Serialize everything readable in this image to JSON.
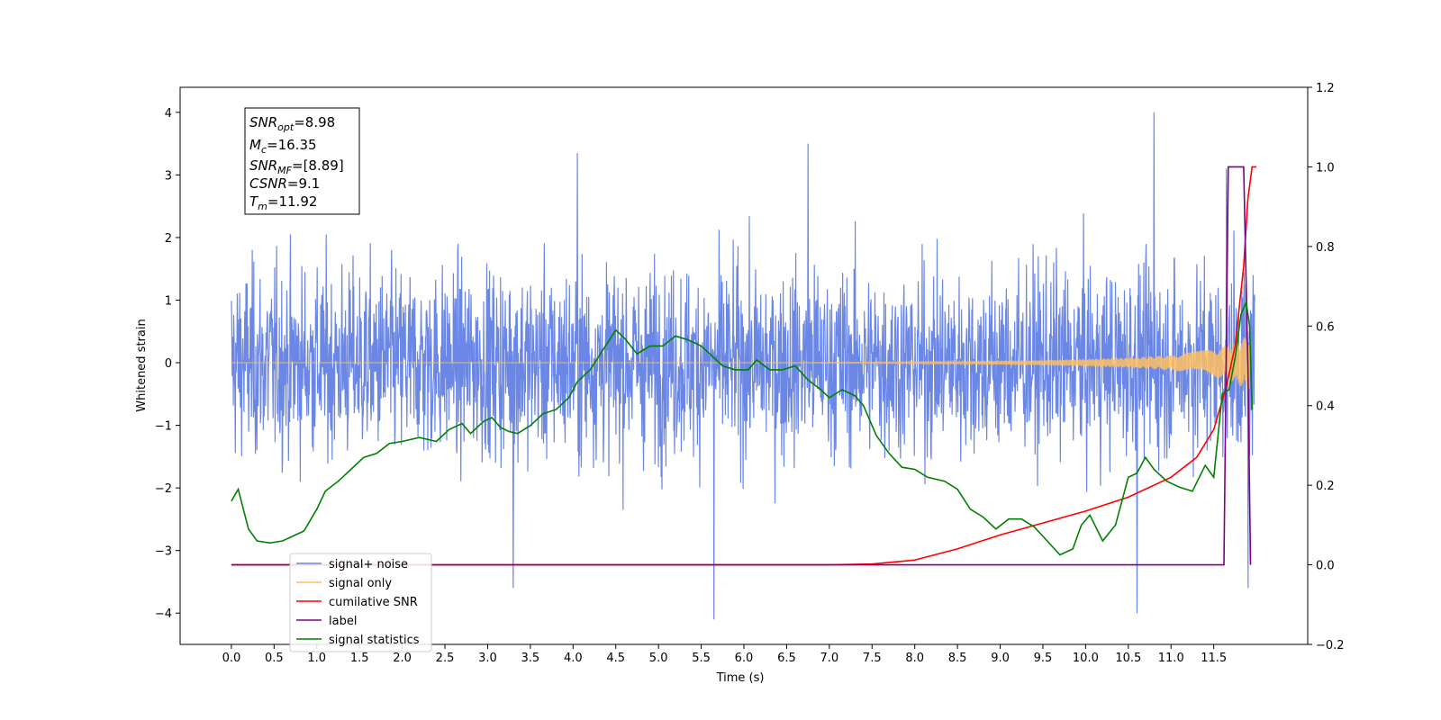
{
  "chart_data": {
    "type": "line",
    "xlabel": "Time (s)",
    "ylabel": "Whitened strain",
    "xlim": [
      -0.6,
      12.6
    ],
    "ylim": [
      -4.5,
      4.4
    ],
    "y2lim": [
      -0.2,
      1.2
    ],
    "xticks": [
      "0.0",
      "0.5",
      "1.0",
      "1.5",
      "2.0",
      "2.5",
      "3.0",
      "3.5",
      "4.0",
      "4.5",
      "5.0",
      "5.5",
      "6.0",
      "6.5",
      "7.0",
      "7.5",
      "8.0",
      "8.5",
      "9.0",
      "9.5",
      "10.0",
      "10.5",
      "11.0",
      "11.5"
    ],
    "yticks": [
      "4",
      "3",
      "2",
      "1",
      "0",
      "−1",
      "−2",
      "−3",
      "−4"
    ],
    "y2ticks": [
      "1.2",
      "1.0",
      "0.8",
      "0.6",
      "0.4",
      "0.2",
      "0.0",
      "−0.2"
    ],
    "grid": false,
    "legend_position": "lower-left",
    "legend": [
      {
        "label": "signal+ noise",
        "color": "#6b87e6"
      },
      {
        "label": "signal only",
        "color": "#ffbf60"
      },
      {
        "label": "cumilative SNR",
        "color": "#ff0000"
      },
      {
        "label": "label",
        "color": "#800080"
      },
      {
        "label": "signal statistics",
        "color": "#008000"
      }
    ],
    "annotation": {
      "snr_opt": "=8.98",
      "mc": "=16.35",
      "snr_mf": "=[8.89]",
      "csnr": "=9.1",
      "tm": "=11.92"
    },
    "series": [
      {
        "name": "signal+ noise",
        "axis": "left",
        "color": "#6b87e6",
        "description": "noise band, extremes",
        "x_range": [
          0.0,
          11.98
        ],
        "typical_envelope": [
          -2.5,
          2.5
        ],
        "spikes": [
          [
            3.3,
            -3.6
          ],
          [
            4.05,
            3.35
          ],
          [
            5.65,
            -4.1
          ],
          [
            6.75,
            3.5
          ],
          [
            10.6,
            -4.0
          ],
          [
            10.8,
            4.0
          ],
          [
            11.65,
            3.1
          ],
          [
            11.9,
            -3.6
          ]
        ]
      },
      {
        "name": "signal only",
        "axis": "left",
        "color": "#ffbf60",
        "envelope_x": [
          0,
          6,
          7.5,
          8.5,
          9.5,
          10.5,
          11.0,
          11.5,
          11.7,
          11.85,
          11.92
        ],
        "envelope_y": [
          0.0,
          0.0,
          0.01,
          0.02,
          0.04,
          0.08,
          0.12,
          0.22,
          0.3,
          0.4,
          0.45
        ]
      },
      {
        "name": "cumilative SNR",
        "axis": "right",
        "color": "#ff0000",
        "x": [
          0,
          7.0,
          7.5,
          8.0,
          8.5,
          9.0,
          9.5,
          10.0,
          10.5,
          11.0,
          11.3,
          11.5,
          11.65,
          11.75,
          11.85,
          11.9,
          11.95,
          12.0
        ],
        "values": [
          0.0,
          0.0,
          0.002,
          0.012,
          0.04,
          0.075,
          0.105,
          0.135,
          0.17,
          0.22,
          0.27,
          0.34,
          0.45,
          0.55,
          0.75,
          0.92,
          1.0,
          1.0
        ]
      },
      {
        "name": "label",
        "axis": "right",
        "color": "#800080",
        "x": [
          0,
          11.62,
          11.67,
          11.85,
          11.9,
          11.93
        ],
        "values": [
          0,
          0,
          1,
          1,
          0.5,
          0
        ]
      },
      {
        "name": "signal statistics",
        "axis": "right",
        "color": "#008000",
        "x": [
          0.0,
          0.08,
          0.2,
          0.3,
          0.45,
          0.6,
          0.75,
          0.85,
          1.0,
          1.1,
          1.25,
          1.4,
          1.55,
          1.7,
          1.85,
          2.0,
          2.2,
          2.4,
          2.55,
          2.7,
          2.8,
          2.95,
          3.05,
          3.15,
          3.25,
          3.35,
          3.5,
          3.65,
          3.8,
          3.95,
          4.05,
          4.2,
          4.35,
          4.5,
          4.6,
          4.75,
          4.9,
          5.05,
          5.2,
          5.35,
          5.5,
          5.6,
          5.75,
          5.9,
          6.05,
          6.15,
          6.3,
          6.45,
          6.6,
          6.75,
          6.9,
          7.0,
          7.15,
          7.3,
          7.4,
          7.55,
          7.7,
          7.85,
          8.0,
          8.15,
          8.35,
          8.5,
          8.65,
          8.8,
          8.95,
          9.1,
          9.25,
          9.4,
          9.55,
          9.7,
          9.85,
          9.95,
          10.05,
          10.2,
          10.35,
          10.5,
          10.6,
          10.7,
          10.8,
          10.95,
          11.1,
          11.25,
          11.4,
          11.5,
          11.6,
          11.68,
          11.75,
          11.82,
          11.88,
          11.92,
          11.95
        ],
        "values": [
          0.16,
          0.19,
          0.09,
          0.06,
          0.055,
          0.06,
          0.075,
          0.085,
          0.14,
          0.185,
          0.21,
          0.24,
          0.27,
          0.28,
          0.305,
          0.31,
          0.32,
          0.31,
          0.34,
          0.355,
          0.33,
          0.36,
          0.37,
          0.345,
          0.335,
          0.33,
          0.35,
          0.38,
          0.39,
          0.42,
          0.46,
          0.49,
          0.54,
          0.59,
          0.57,
          0.53,
          0.55,
          0.55,
          0.575,
          0.565,
          0.55,
          0.53,
          0.5,
          0.49,
          0.49,
          0.515,
          0.49,
          0.49,
          0.5,
          0.465,
          0.44,
          0.42,
          0.44,
          0.425,
          0.4,
          0.325,
          0.28,
          0.245,
          0.24,
          0.22,
          0.21,
          0.19,
          0.14,
          0.12,
          0.09,
          0.115,
          0.115,
          0.095,
          0.06,
          0.025,
          0.04,
          0.1,
          0.125,
          0.06,
          0.1,
          0.22,
          0.23,
          0.27,
          0.24,
          0.21,
          0.195,
          0.185,
          0.25,
          0.22,
          0.43,
          0.44,
          0.52,
          0.63,
          0.66,
          0.6,
          0.39
        ]
      }
    ]
  }
}
